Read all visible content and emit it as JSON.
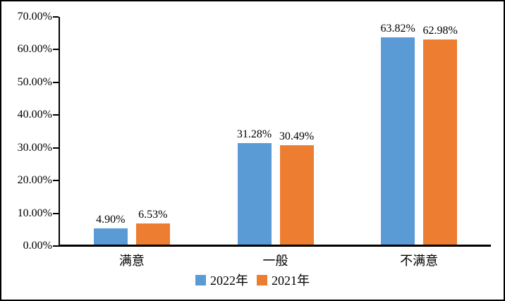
{
  "chart_data": {
    "type": "bar",
    "categories": [
      "满意",
      "一般",
      "不满意"
    ],
    "series": [
      {
        "name": "2022年",
        "color": "#5B9BD5",
        "values": [
          4.9,
          31.28,
          63.82
        ],
        "labels": [
          "4.90%",
          "31.28%",
          "63.82%"
        ]
      },
      {
        "name": "2021年",
        "color": "#ED7D31",
        "values": [
          6.53,
          30.49,
          62.98
        ],
        "labels": [
          "6.53%",
          "30.49%",
          "62.98%"
        ]
      }
    ],
    "title": "",
    "xlabel": "",
    "ylabel": "",
    "ylim": [
      0,
      70
    ],
    "yticks": [
      "0.00%",
      "10.00%",
      "20.00%",
      "30.00%",
      "40.00%",
      "50.00%",
      "60.00%",
      "70.00%"
    ],
    "grid": false,
    "legend_position": "bottom",
    "axis_color": "#000000",
    "background_color": "#FFFFFF"
  }
}
